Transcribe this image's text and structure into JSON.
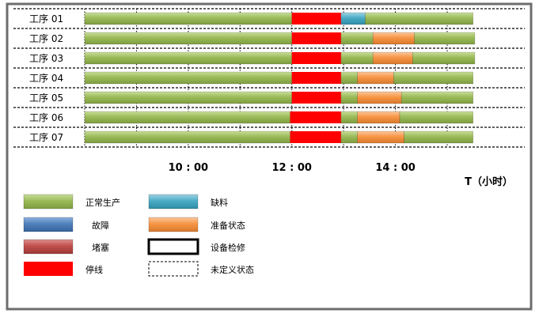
{
  "chart_data": {
    "type": "gantt",
    "title": "",
    "x_axis": {
      "unit_label": "T（小时）",
      "tick_labels": [
        "10 : 00",
        "12 : 00",
        "14 : 00"
      ],
      "tick_hours": [
        10,
        12,
        14
      ],
      "range_hours": [
        8.0,
        15.55
      ],
      "grid": "dotted vertical lines"
    },
    "processes": [
      {
        "name": "工序 01",
        "segments": [
          {
            "state": "正常生产",
            "start": "8:00",
            "end": "12:00"
          },
          {
            "state": "停线",
            "start": "12:00",
            "end": "12:57"
          },
          {
            "state": "缺料",
            "start": "12:57",
            "end": "13:25"
          },
          {
            "state": "正常生产",
            "start": "13:25",
            "end": "15:30"
          }
        ]
      },
      {
        "name": "工序 02",
        "segments": [
          {
            "state": "正常生产",
            "start": "8:00",
            "end": "12:00"
          },
          {
            "state": "停线",
            "start": "12:00",
            "end": "12:57"
          },
          {
            "state": "正常生产",
            "start": "12:57",
            "end": "13:34"
          },
          {
            "state": "准备状态",
            "start": "13:34",
            "end": "14:22"
          },
          {
            "state": "正常生产",
            "start": "14:22",
            "end": "15:32"
          }
        ]
      },
      {
        "name": "工序 03",
        "segments": [
          {
            "state": "正常生产",
            "start": "8:00",
            "end": "12:00"
          },
          {
            "state": "停线",
            "start": "12:00",
            "end": "12:57"
          },
          {
            "state": "正常生产",
            "start": "12:57",
            "end": "13:34"
          },
          {
            "state": "准备状态",
            "start": "13:34",
            "end": "14:20"
          },
          {
            "state": "正常生产",
            "start": "14:20",
            "end": "15:32"
          }
        ]
      },
      {
        "name": "工序 04",
        "segments": [
          {
            "state": "正常生产",
            "start": "8:00",
            "end": "12:00"
          },
          {
            "state": "停线",
            "start": "12:00",
            "end": "12:57"
          },
          {
            "state": "正常生产",
            "start": "12:57",
            "end": "13:16"
          },
          {
            "state": "准备状态",
            "start": "13:16",
            "end": "13:58"
          },
          {
            "state": "正常生产",
            "start": "13:58",
            "end": "15:30"
          }
        ]
      },
      {
        "name": "工序 05",
        "segments": [
          {
            "state": "正常生产",
            "start": "8:00",
            "end": "12:00"
          },
          {
            "state": "停线",
            "start": "12:00",
            "end": "12:57"
          },
          {
            "state": "正常生产",
            "start": "12:57",
            "end": "13:16"
          },
          {
            "state": "准备状态",
            "start": "13:16",
            "end": "14:07"
          },
          {
            "state": "正常生产",
            "start": "14:07",
            "end": "15:30"
          }
        ]
      },
      {
        "name": "工序 06",
        "segments": [
          {
            "state": "正常生产",
            "start": "8:00",
            "end": "11:58"
          },
          {
            "state": "停线",
            "start": "11:58",
            "end": "12:57"
          },
          {
            "state": "正常生产",
            "start": "12:57",
            "end": "13:16"
          },
          {
            "state": "准备状态",
            "start": "13:16",
            "end": "14:05"
          },
          {
            "state": "正常生产",
            "start": "14:05",
            "end": "15:30"
          }
        ]
      },
      {
        "name": "工序 07",
        "segments": [
          {
            "state": "正常生产",
            "start": "8:00",
            "end": "11:58"
          },
          {
            "state": "停线",
            "start": "11:58",
            "end": "12:57"
          },
          {
            "state": "正常生产",
            "start": "12:57",
            "end": "13:16"
          },
          {
            "state": "准备状态",
            "start": "13:16",
            "end": "14:10"
          },
          {
            "state": "正常生产",
            "start": "14:10",
            "end": "15:30"
          }
        ]
      }
    ],
    "legend": {
      "placement": "bottom-left",
      "items": [
        {
          "label": "正常生产",
          "style": "filled",
          "color": "#9BBB59",
          "col": 0,
          "row": 0
        },
        {
          "label": "故障",
          "style": "filled",
          "color": "#4F81BD",
          "col": 0,
          "row": 1
        },
        {
          "label": "堵塞",
          "style": "filled",
          "color": "#C0504D",
          "col": 0,
          "row": 2
        },
        {
          "label": "停线",
          "style": "filled",
          "color": "#FF0000",
          "col": 0,
          "row": 3
        },
        {
          "label": "缺料",
          "style": "filled",
          "color": "#4BACC6",
          "col": 1,
          "row": 0
        },
        {
          "label": "准备状态",
          "style": "filled",
          "color": "#F79646",
          "col": 1,
          "row": 1
        },
        {
          "label": "设备检修",
          "style": "outline-bold",
          "color": "#000000",
          "col": 1,
          "row": 2
        },
        {
          "label": "未定义状态",
          "style": "outline-dashed",
          "color": "#000000",
          "col": 1,
          "row": 3
        }
      ]
    }
  }
}
